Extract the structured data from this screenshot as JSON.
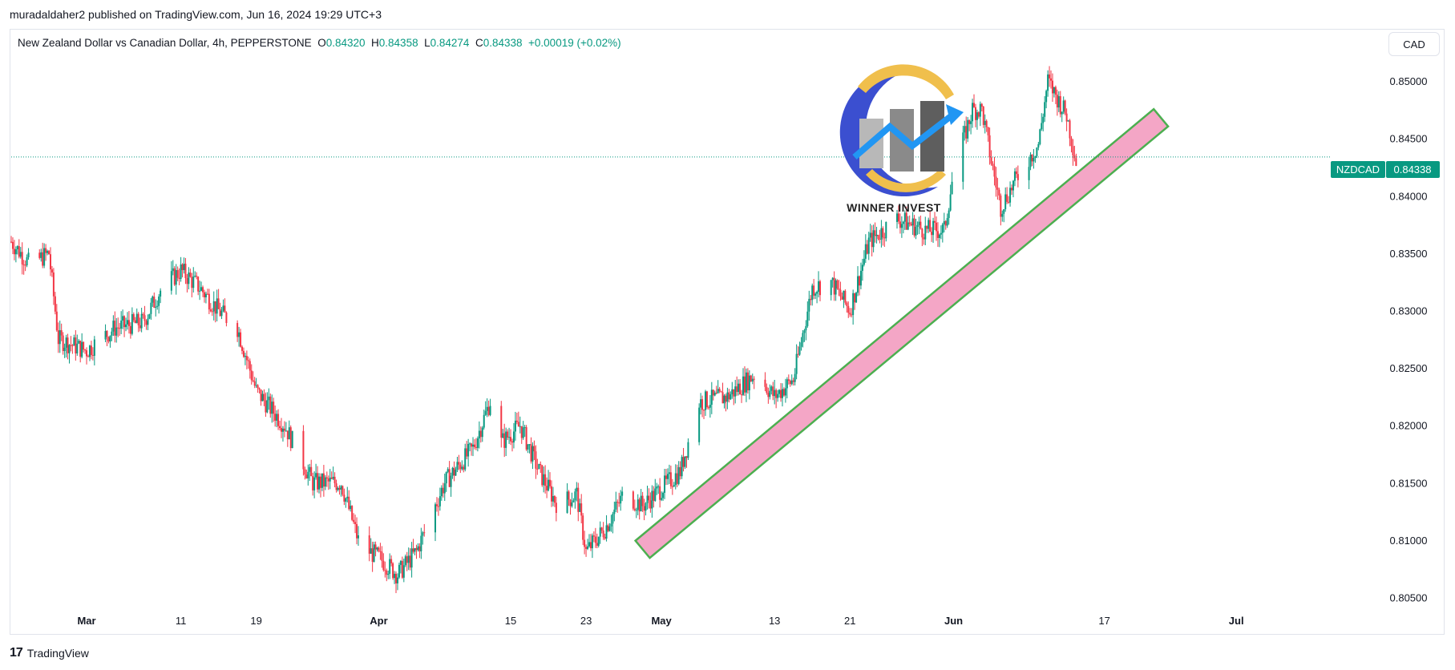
{
  "publisher_line": "muradaldaher2 published on TradingView.com, Jun 16, 2024 19:29 UTC+3",
  "legend": {
    "instrument": "New Zealand Dollar vs Canadian Dollar, 4h, PEPPERSTONE",
    "o_label": "O",
    "o_value": "0.84320",
    "h_label": "H",
    "h_value": "0.84358",
    "l_label": "L",
    "l_value": "0.84274",
    "c_label": "C",
    "c_value": "0.84338",
    "change": "+0.00019 (+0.02%)"
  },
  "currency_button": "CAD",
  "price_tag": {
    "symbol": "NZDCAD",
    "value": "0.84338"
  },
  "logo": {
    "text": "WINNER INVEST"
  },
  "footer": {
    "brand": "TradingView",
    "mark": "17"
  },
  "colors": {
    "up": "#089981",
    "down": "#f23645",
    "channel_fill": "#f4a6c6",
    "channel_stroke": "#4caf50",
    "price_line": "#089981"
  },
  "chart_data": {
    "type": "candlestick",
    "symbol": "NZDCAD",
    "timeframe": "4h",
    "last_price": 0.84338,
    "ylim": [
      0.8035,
      0.8535
    ],
    "y_ticks": [
      "0.85000",
      "0.84500",
      "0.84000",
      "0.83500",
      "0.83000",
      "0.82500",
      "0.82000",
      "0.81500",
      "0.81000",
      "0.80500"
    ],
    "x_ticks": [
      "Mar",
      "11",
      "19",
      "Apr",
      "15",
      "23",
      "May",
      "13",
      "21",
      "Jun",
      "17",
      "Jul"
    ],
    "grid": false,
    "price_path": [
      [
        "2024-02-22",
        0.836
      ],
      [
        "2024-02-24",
        0.834
      ],
      [
        "2024-02-26",
        0.835
      ],
      [
        "2024-02-27",
        0.8275
      ],
      [
        "2024-03-01",
        0.8265
      ],
      [
        "2024-03-04",
        0.8285
      ],
      [
        "2024-03-07",
        0.829
      ],
      [
        "2024-03-09",
        0.832
      ],
      [
        "2024-03-11",
        0.8335
      ],
      [
        "2024-03-13",
        0.832
      ],
      [
        "2024-03-15",
        0.83
      ],
      [
        "2024-03-17",
        0.8285
      ],
      [
        "2024-03-19",
        0.823
      ],
      [
        "2024-03-22",
        0.82
      ],
      [
        "2024-03-25",
        0.815
      ],
      [
        "2024-03-28",
        0.815
      ],
      [
        "2024-03-30",
        0.8095
      ],
      [
        "2024-04-01",
        0.8085
      ],
      [
        "2024-04-03",
        0.807
      ],
      [
        "2024-04-05",
        0.809
      ],
      [
        "2024-04-08",
        0.815
      ],
      [
        "2024-04-11",
        0.818
      ],
      [
        "2024-04-13",
        0.8225
      ],
      [
        "2024-04-14",
        0.8185
      ],
      [
        "2024-04-16",
        0.82
      ],
      [
        "2024-04-18",
        0.816
      ],
      [
        "2024-04-20",
        0.813
      ],
      [
        "2024-04-22",
        0.814
      ],
      [
        "2024-04-23",
        0.809
      ],
      [
        "2024-04-25",
        0.811
      ],
      [
        "2024-04-27",
        0.814
      ],
      [
        "2024-04-29",
        0.813
      ],
      [
        "2024-05-01",
        0.8145
      ],
      [
        "2024-05-03",
        0.816
      ],
      [
        "2024-05-05",
        0.822
      ],
      [
        "2024-05-08",
        0.8225
      ],
      [
        "2024-05-11",
        0.8245
      ],
      [
        "2024-05-13",
        0.8225
      ],
      [
        "2024-05-15",
        0.824
      ],
      [
        "2024-05-17",
        0.832
      ],
      [
        "2024-05-19",
        0.8325
      ],
      [
        "2024-05-21",
        0.83
      ],
      [
        "2024-05-23",
        0.836
      ],
      [
        "2024-05-26",
        0.838
      ],
      [
        "2024-05-29",
        0.837
      ],
      [
        "2024-05-31",
        0.837
      ],
      [
        "2024-06-01",
        0.842
      ],
      [
        "2024-06-03",
        0.8475
      ],
      [
        "2024-06-04",
        0.8475
      ],
      [
        "2024-06-05",
        0.843
      ],
      [
        "2024-06-06",
        0.839
      ],
      [
        "2024-06-08",
        0.842
      ],
      [
        "2024-06-10",
        0.8445
      ],
      [
        "2024-06-11",
        0.85
      ],
      [
        "2024-06-13",
        0.847
      ],
      [
        "2024-06-14",
        0.843
      ]
    ],
    "channel": {
      "start": [
        "2024-04-29",
        0.8092
      ],
      "end": [
        "2024-06-23",
        0.8468
      ]
    }
  }
}
